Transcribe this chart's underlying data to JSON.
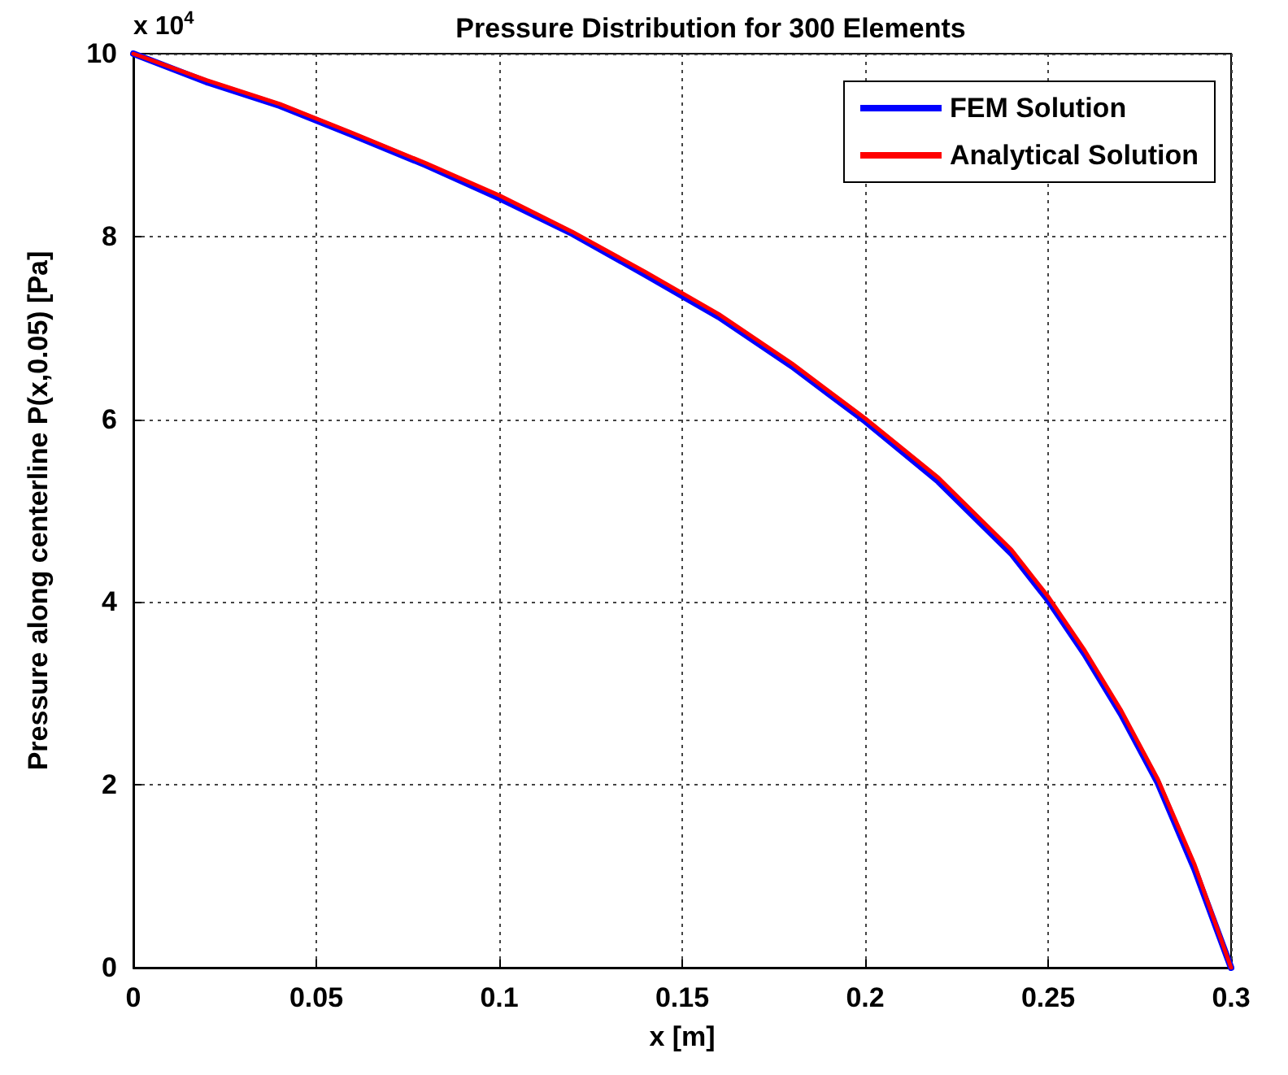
{
  "chart_data": {
    "type": "line",
    "title": "Pressure Distribution for 300 Elements",
    "xlabel": "x [m]",
    "ylabel": "Pressure along centerline P(x,0.05) [Pa]",
    "annotations": [
      "x 10$^{4}$"
    ],
    "x": [
      0,
      0.02,
      0.04,
      0.06,
      0.08,
      0.1,
      0.12,
      0.14,
      0.16,
      0.18,
      0.2,
      0.22,
      0.24,
      0.25,
      0.26,
      0.27,
      0.28,
      0.29,
      0.3
    ],
    "series": [
      {
        "name": "FEM Solution",
        "color": "#0000ff",
        "values": [
          10,
          9.69,
          9.43,
          9.11,
          8.78,
          8.42,
          8.03,
          7.58,
          7.12,
          6.58,
          5.98,
          5.32,
          4.53,
          4.02,
          3.43,
          2.77,
          2.02,
          1.08,
          0
        ]
      },
      {
        "name": "Analytical Solution",
        "color": "#ff0000",
        "values": [
          10,
          9.71,
          9.45,
          9.13,
          8.8,
          8.45,
          8.05,
          7.61,
          7.15,
          6.61,
          6.01,
          5.36,
          4.57,
          4.06,
          3.47,
          2.81,
          2.06,
          1.13,
          0
        ]
      }
    ],
    "xlim": [
      0,
      0.3
    ],
    "xticks": [
      0,
      0.05,
      0.1,
      0.15,
      0.2,
      0.25,
      0.3
    ],
    "ylim": [
      0,
      10
    ],
    "yticks": [
      0,
      2,
      4,
      6,
      8,
      10
    ],
    "grid": true,
    "legend": "top right",
    "marker": "none",
    "line_style": "solid"
  }
}
